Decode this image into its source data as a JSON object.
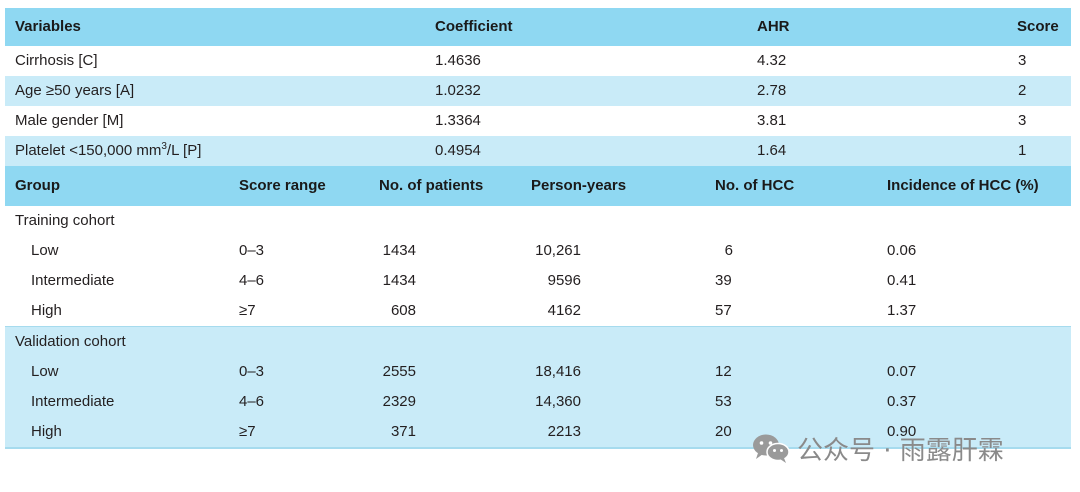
{
  "variables_table": {
    "headers": {
      "variables": "Variables",
      "coefficient": "Coefficient",
      "ahr": "AHR",
      "score": "Score"
    },
    "rows": [
      {
        "variable": "Cirrhosis [C]",
        "coefficient": "1.4636",
        "ahr": "4.32",
        "score": "3"
      },
      {
        "variable": "Age ≥50 years [A]",
        "coefficient": "1.0232",
        "ahr": "2.78",
        "score": "2"
      },
      {
        "variable": "Male gender [M]",
        "coefficient": "1.3364",
        "ahr": "3.81",
        "score": "3"
      },
      {
        "variable_prefix": "Platelet <150,000 mm",
        "variable_sup": "3",
        "variable_suffix": "/L [P]",
        "coefficient": "0.4954",
        "ahr": "1.64",
        "score": "1"
      }
    ]
  },
  "group_table": {
    "headers": {
      "group": "Group",
      "score_range": "Score range",
      "patients": "No. of patients",
      "person_years": "Person-years",
      "hcc": "No. of HCC",
      "incidence": "Incidence of HCC (%)"
    },
    "training": {
      "title": "Training cohort",
      "rows": [
        {
          "group": "Low",
          "score_range": "0–3",
          "patients": "1434",
          "person_years": "10,261",
          "hcc": "6",
          "incidence": "0.06"
        },
        {
          "group": "Intermediate",
          "score_range": "4–6",
          "patients": "1434",
          "person_years": "9596",
          "hcc": "39",
          "incidence": "0.41"
        },
        {
          "group": "High",
          "score_range": "≥7",
          "patients": "608",
          "person_years": "4162",
          "hcc": "57",
          "incidence": "1.37"
        }
      ]
    },
    "validation": {
      "title": "Validation cohort",
      "rows": [
        {
          "group": "Low",
          "score_range": "0–3",
          "patients": "2555",
          "person_years": "18,416",
          "hcc": "12",
          "incidence": "0.07"
        },
        {
          "group": "Intermediate",
          "score_range": "4–6",
          "patients": "2329",
          "person_years": "14,360",
          "hcc": "53",
          "incidence": "0.37"
        },
        {
          "group": "High",
          "score_range": "≥7",
          "patients": "371",
          "person_years": "2213",
          "hcc": "20",
          "incidence": "0.90"
        }
      ]
    }
  },
  "watermark": {
    "text": "公众号 · 雨露肝霖",
    "icon": "wechat-icon"
  },
  "colors": {
    "header_bg": "#8fd8f2",
    "row_light": "#c9ebf8",
    "row_white": "#ffffff"
  }
}
